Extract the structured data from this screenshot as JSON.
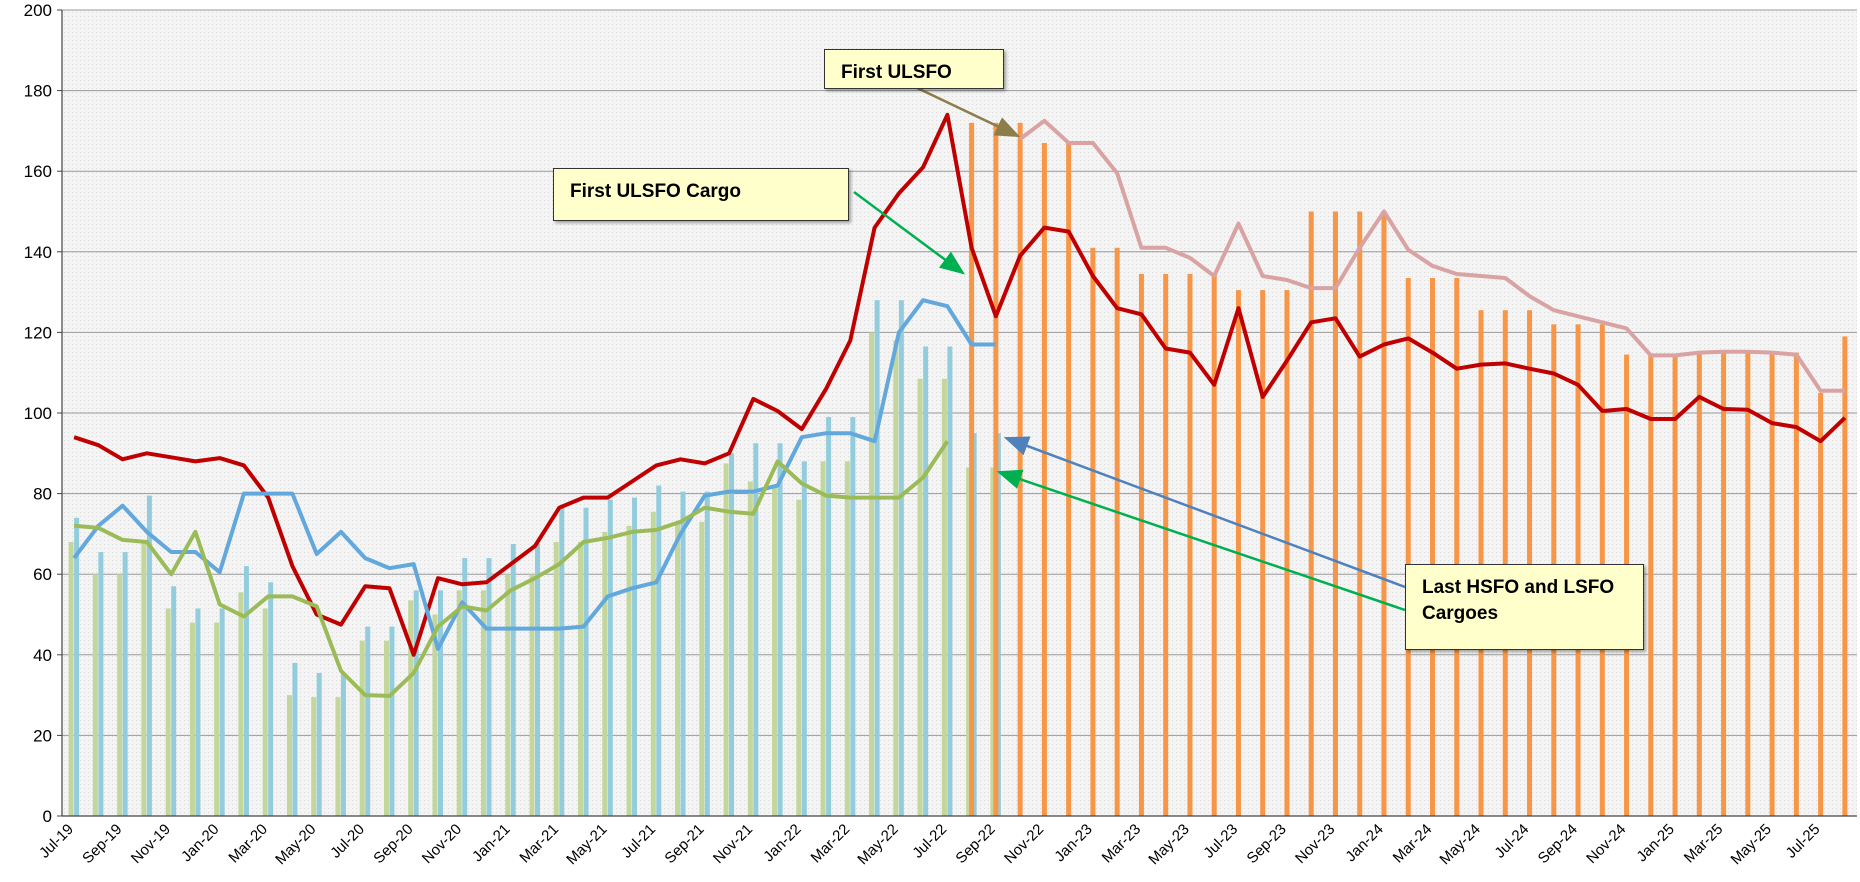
{
  "chart_data": {
    "type": "bar",
    "categories": [
      "Jul-19",
      null,
      "Sep-19",
      null,
      "Nov-19",
      null,
      "Jan-20",
      null,
      "Mar-20",
      null,
      "May-20",
      null,
      "Jul-20",
      null,
      "Sep-20",
      null,
      "Nov-20",
      null,
      "Jan-21",
      null,
      "Mar-21",
      null,
      "May-21",
      null,
      "Jul-21",
      null,
      "Sep-21",
      null,
      "Nov-21",
      null,
      "Jan-22",
      null,
      "Mar-22",
      null,
      "May-22",
      null,
      "Jul-22",
      null,
      "Sep-22",
      null,
      "Nov-22",
      null,
      "Jan-23",
      null,
      "Mar-23",
      null,
      "May-23",
      null,
      "Jul-23",
      null,
      "Sep-23",
      null,
      "Nov-23",
      null,
      "Jan-24",
      null,
      "Mar-24",
      null,
      "May-24",
      null,
      "Jul-24",
      null,
      "Sep-24",
      null,
      "Nov-24",
      null,
      "Jan-25",
      null,
      "Mar-25",
      null,
      "May-25",
      null,
      "Jul-25",
      null
    ],
    "series": [
      {
        "type": "bar",
        "color": "#c3d69b",
        "values": [
          68,
          60,
          60,
          68,
          51.5,
          48,
          48,
          55.5,
          51.5,
          30,
          29.5,
          29.5,
          43.5,
          43.5,
          53.5,
          50,
          56,
          56,
          60,
          60,
          68,
          68,
          70.5,
          72,
          75.5,
          73,
          73,
          87.5,
          83,
          82,
          78.5,
          88,
          88,
          120,
          118,
          108.5,
          108.5,
          86.5,
          86.5,
          null,
          null,
          null,
          null,
          null,
          null,
          null,
          null,
          null,
          null,
          null,
          null,
          null,
          null,
          null,
          null,
          null,
          null,
          null,
          null,
          null,
          null,
          null,
          null,
          null,
          null,
          null,
          null,
          null,
          null,
          null,
          null,
          null,
          null,
          null
        ]
      },
      {
        "type": "bar",
        "color": "#93cddd",
        "values": [
          74,
          65.5,
          65.5,
          79.5,
          57,
          51.5,
          51.5,
          62,
          58,
          38,
          35.5,
          35.5,
          47,
          47,
          56,
          56,
          64,
          64,
          67.5,
          67.5,
          76.5,
          76.5,
          78.5,
          79,
          82,
          80.5,
          80.5,
          90,
          92.5,
          92.5,
          88,
          99,
          99,
          128,
          128,
          116.5,
          116.5,
          95,
          95,
          null,
          null,
          null,
          null,
          null,
          null,
          null,
          null,
          null,
          null,
          null,
          null,
          null,
          null,
          null,
          null,
          null,
          null,
          null,
          null,
          null,
          null,
          null,
          null,
          null,
          null,
          null,
          null,
          null,
          null,
          null,
          null,
          null,
          null,
          null
        ]
      },
      {
        "type": "bar",
        "color": "#f79646",
        "values": [
          null,
          null,
          null,
          null,
          null,
          null,
          null,
          null,
          null,
          null,
          null,
          null,
          null,
          null,
          null,
          null,
          null,
          null,
          null,
          null,
          null,
          null,
          null,
          null,
          null,
          null,
          null,
          null,
          null,
          null,
          null,
          null,
          null,
          null,
          null,
          null,
          null,
          172,
          172,
          172,
          167,
          167,
          141,
          141,
          134.5,
          134.5,
          134.5,
          134.5,
          130.5,
          130.5,
          130.5,
          150,
          150,
          150,
          150,
          133.5,
          133.5,
          133.5,
          125.5,
          125.5,
          125.5,
          122,
          122,
          122,
          114.5,
          114.5,
          114.5,
          115,
          115,
          115,
          115,
          115,
          105,
          119
        ]
      },
      {
        "type": "line",
        "color": "#c00000",
        "values": [
          94,
          92,
          88.5,
          90,
          89,
          88,
          88.8,
          87,
          79,
          62,
          50,
          47.5,
          57,
          56.5,
          40,
          59,
          57.5,
          58,
          62.5,
          67,
          76.5,
          79,
          79,
          83,
          87,
          88.5,
          87.5,
          90,
          103.5,
          100.5,
          96,
          106,
          118,
          146,
          154.5,
          161,
          174,
          141,
          124,
          139,
          146,
          145,
          134,
          126,
          124.5,
          116,
          115,
          107,
          126,
          104,
          113,
          122.5,
          123.5,
          114,
          117,
          118.5,
          115,
          111,
          112,
          112.3,
          111,
          109.8,
          107,
          100.5,
          101,
          98.5,
          98.5,
          104,
          101,
          100.8,
          97.5,
          96.5,
          93,
          98.8
        ]
      },
      {
        "type": "line",
        "color": "#62a8dc",
        "values": [
          64,
          72,
          77,
          70.5,
          65.5,
          65.5,
          60.5,
          80,
          80,
          80,
          65,
          70.5,
          64,
          61.5,
          62.5,
          41.5,
          53,
          46.5,
          46.5,
          46.5,
          46.5,
          47,
          54.5,
          56.5,
          58,
          70,
          79.5,
          80.5,
          80.5,
          82,
          94,
          95,
          95,
          93,
          120,
          128,
          126.5,
          117,
          117,
          null,
          null,
          null,
          null,
          null,
          null,
          null,
          null,
          null,
          null,
          null,
          null,
          null,
          null,
          null,
          null,
          null,
          null,
          null,
          null,
          null,
          null,
          null,
          null,
          null,
          null,
          null,
          null,
          null,
          null,
          null,
          null,
          null,
          null,
          null
        ]
      },
      {
        "type": "line",
        "color": "#9bbb59",
        "values": [
          72,
          71.5,
          68.5,
          68,
          60,
          70.5,
          52.5,
          49.5,
          54.5,
          54.5,
          52,
          36,
          30,
          29.8,
          35.5,
          47,
          52,
          51,
          56,
          59,
          62.5,
          68,
          69,
          70.5,
          71,
          73,
          76.5,
          75.5,
          75,
          88,
          82.5,
          79.5,
          79,
          79,
          79,
          84,
          93,
          null,
          null,
          null,
          null,
          null,
          null,
          null,
          null,
          null,
          null,
          null,
          null,
          null,
          null,
          null,
          null,
          null,
          null,
          null,
          null,
          null,
          null,
          null,
          null,
          null,
          null,
          null,
          null,
          null,
          null,
          null,
          null,
          null,
          null,
          null,
          null,
          null
        ]
      },
      {
        "type": "line",
        "color": "#d9a3a3",
        "values": [
          null,
          null,
          null,
          null,
          null,
          null,
          null,
          null,
          null,
          null,
          null,
          null,
          null,
          null,
          null,
          null,
          null,
          null,
          null,
          null,
          null,
          null,
          null,
          null,
          null,
          null,
          null,
          null,
          null,
          null,
          null,
          null,
          null,
          null,
          null,
          null,
          null,
          null,
          null,
          168,
          172.5,
          167,
          167,
          159.5,
          141,
          141,
          138.5,
          134,
          147,
          134,
          133,
          131,
          131,
          141,
          150,
          140.5,
          136.5,
          134.5,
          134,
          133.5,
          129,
          125.5,
          124,
          122.5,
          121,
          114.3,
          114.3,
          115,
          115.2,
          115.2,
          115,
          114.5,
          105.5,
          105.5
        ]
      }
    ],
    "ylim": [
      0,
      200
    ],
    "yticks": [
      0,
      20,
      40,
      60,
      80,
      100,
      120,
      140,
      160,
      180,
      200
    ],
    "grid": true,
    "annotations": [
      "First ULSFO",
      "First ULSFO Cargo",
      "Last HSFO and LSFO Cargoes"
    ]
  }
}
